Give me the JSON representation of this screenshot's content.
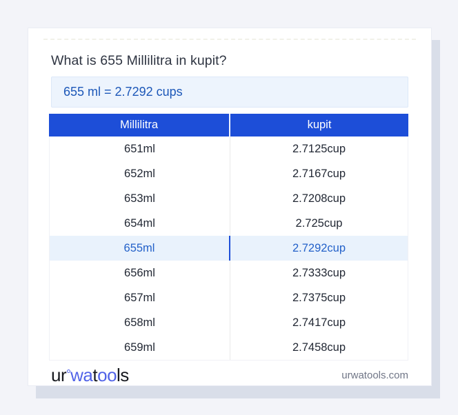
{
  "card": {
    "title": "What is 655 Millilitra in kupit?",
    "result_text": "655 ml = 2.7292 cups"
  },
  "table": {
    "headers": [
      "Millilitra",
      "kupit"
    ],
    "highlight_index": 4,
    "rows": [
      {
        "ml": "651ml",
        "cup": "2.7125cup"
      },
      {
        "ml": "652ml",
        "cup": "2.7167cup"
      },
      {
        "ml": "653ml",
        "cup": "2.7208cup"
      },
      {
        "ml": "654ml",
        "cup": "2.725cup"
      },
      {
        "ml": "655ml",
        "cup": "2.7292cup"
      },
      {
        "ml": "656ml",
        "cup": "2.7333cup"
      },
      {
        "ml": "657ml",
        "cup": "2.7375cup"
      },
      {
        "ml": "658ml",
        "cup": "2.7417cup"
      },
      {
        "ml": "659ml",
        "cup": "2.7458cup"
      }
    ]
  },
  "footer": {
    "logo": {
      "seg1": "ur",
      "seg2": "wa",
      "seg3": "t",
      "seg4": "oo",
      "seg5": "ls"
    },
    "site": "urwatools.com"
  },
  "colors": {
    "header_blue": "#1d4ed8",
    "result_box_bg": "#edf4fd",
    "result_text_blue": "#1c57b8",
    "highlight_row_bg": "#e9f2fc",
    "highlight_text_blue": "#2361c9",
    "logo_blue": "#5163e8",
    "page_bg": "#f3f4f9",
    "shadow": "#d9dee9"
  }
}
